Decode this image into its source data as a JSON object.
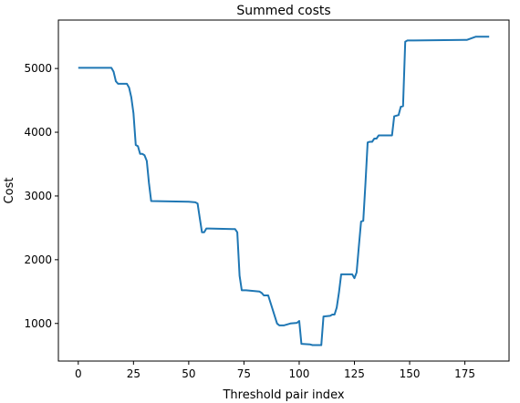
{
  "chart_data": {
    "type": "line",
    "title": "Summed costs",
    "xlabel": "Threshold pair index",
    "ylabel": "Cost",
    "xlim": [
      -9,
      195
    ],
    "ylim": [
      410,
      5760
    ],
    "xticks": [
      0,
      25,
      50,
      75,
      100,
      125,
      150,
      175
    ],
    "yticks": [
      1000,
      2000,
      3000,
      4000,
      5000
    ],
    "grid": false,
    "line_color": "#1f77b4",
    "series": [
      {
        "x": [
          0,
          15,
          16,
          17,
          18,
          22,
          23,
          24,
          25,
          26,
          27,
          28,
          29,
          30,
          31,
          32,
          33,
          50,
          53,
          54,
          55,
          56,
          57,
          58,
          59,
          71,
          72,
          73,
          74,
          75,
          76,
          82,
          83,
          84,
          85,
          86,
          90,
          91,
          93,
          96,
          99,
          100,
          101,
          105,
          106,
          110,
          111,
          114,
          115,
          116,
          117,
          118,
          119,
          124,
          125,
          126,
          127,
          128,
          129,
          130,
          131,
          132,
          133,
          134,
          135,
          136,
          137,
          142,
          143,
          145,
          146,
          147,
          148,
          149,
          150,
          151,
          152,
          175,
          176,
          180,
          181,
          186
        ],
        "y": [
          5010,
          5010,
          4950,
          4800,
          4760,
          4760,
          4700,
          4550,
          4300,
          3800,
          3780,
          3660,
          3660,
          3640,
          3550,
          3200,
          2920,
          2910,
          2900,
          2880,
          2650,
          2430,
          2430,
          2490,
          2490,
          2480,
          2430,
          1750,
          1520,
          1520,
          1520,
          1500,
          1480,
          1440,
          1440,
          1440,
          1000,
          970,
          970,
          1000,
          1010,
          1040,
          680,
          670,
          660,
          660,
          1110,
          1120,
          1140,
          1140,
          1250,
          1480,
          1770,
          1770,
          1710,
          1800,
          2200,
          2600,
          2610,
          3200,
          3840,
          3850,
          3850,
          3900,
          3900,
          3950,
          3950,
          3950,
          4250,
          4270,
          4400,
          4410,
          5420,
          5440,
          5440,
          5440,
          5440,
          5450,
          5450,
          5500,
          5500,
          5500
        ]
      }
    ]
  }
}
